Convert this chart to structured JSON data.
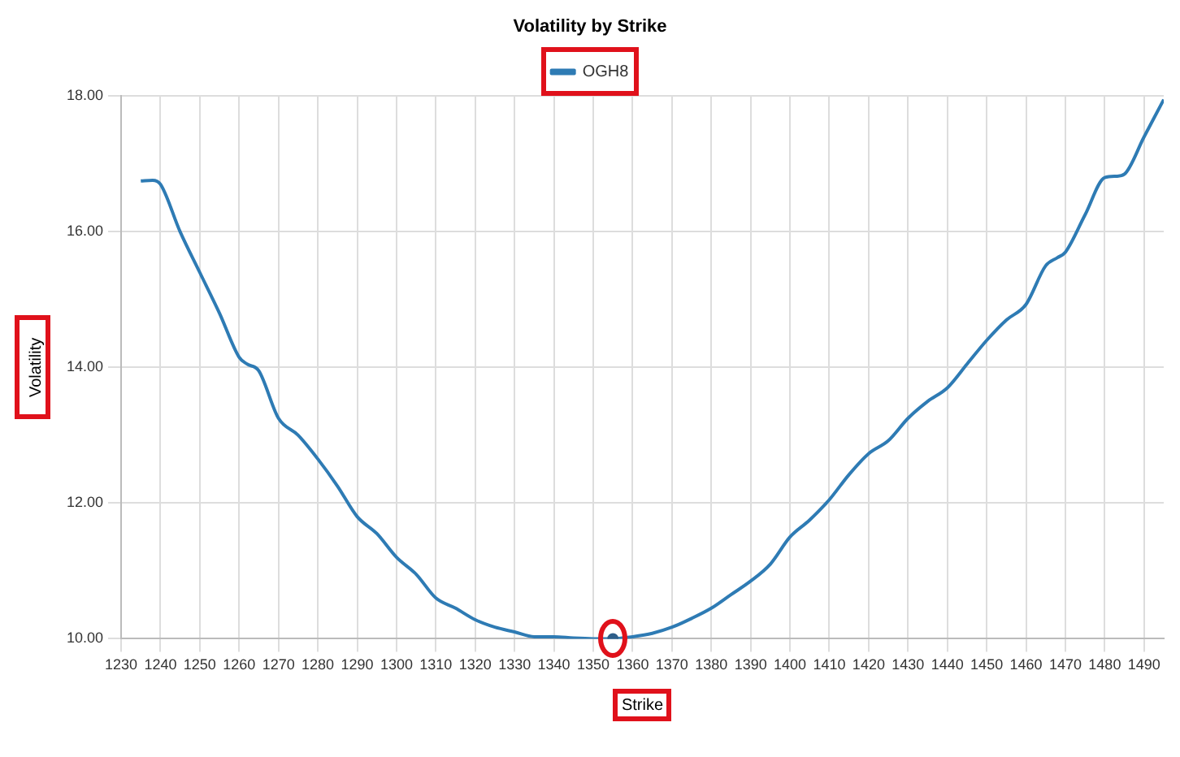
{
  "chart_data": {
    "type": "line",
    "title": "Volatility by Strike",
    "xlabel": "Strike",
    "ylabel": "Volatility",
    "series": [
      {
        "name": "OGH8",
        "color": "#2e7bb4",
        "marker": "none",
        "x": [
          1235,
          1238,
          1240,
          1245,
          1250,
          1255,
          1260,
          1262,
          1265,
          1270,
          1275,
          1280,
          1285,
          1290,
          1295,
          1300,
          1305,
          1310,
          1315,
          1320,
          1325,
          1330,
          1335,
          1340,
          1345,
          1350,
          1355,
          1360,
          1365,
          1370,
          1375,
          1380,
          1385,
          1390,
          1395,
          1400,
          1405,
          1410,
          1415,
          1420,
          1425,
          1430,
          1435,
          1440,
          1445,
          1450,
          1455,
          1460,
          1465,
          1468,
          1470,
          1475,
          1480,
          1483,
          1485,
          1490,
          1495
        ],
        "values": [
          16.75,
          16.76,
          16.7,
          16.0,
          15.4,
          14.8,
          14.15,
          14.05,
          13.95,
          13.25,
          13.0,
          12.65,
          12.25,
          11.8,
          11.55,
          11.2,
          10.95,
          10.6,
          10.45,
          10.28,
          10.17,
          10.1,
          10.03,
          10.03,
          10.01,
          10.0,
          10.0,
          10.03,
          10.08,
          10.17,
          10.3,
          10.45,
          10.65,
          10.85,
          11.1,
          11.5,
          11.75,
          12.05,
          12.42,
          12.73,
          12.92,
          13.25,
          13.5,
          13.7,
          14.05,
          14.4,
          14.7,
          14.93,
          15.5,
          15.62,
          15.7,
          16.25,
          16.8,
          16.82,
          16.85,
          17.4,
          17.95
        ]
      },
      {
        "type": "scatter",
        "color": "#2e5f8a",
        "marker": "circle",
        "x": [
          1355
        ],
        "values": [
          10.0
        ]
      }
    ],
    "xlim": [
      1230,
      1495
    ],
    "xticks": [
      1230,
      1240,
      1250,
      1260,
      1270,
      1280,
      1290,
      1300,
      1310,
      1320,
      1330,
      1340,
      1350,
      1360,
      1370,
      1380,
      1390,
      1400,
      1410,
      1420,
      1430,
      1440,
      1450,
      1460,
      1470,
      1480,
      1490
    ],
    "ylim": [
      10,
      18
    ],
    "yticks": [
      {
        "value": 10,
        "label": "10.00"
      },
      {
        "value": 12,
        "label": "12.00"
      },
      {
        "value": 14,
        "label": "14.00"
      },
      {
        "value": 16,
        "label": "16.00"
      },
      {
        "value": 18,
        "label": "18.00"
      }
    ],
    "grid": true,
    "legend": "top",
    "line_style": "solid"
  }
}
